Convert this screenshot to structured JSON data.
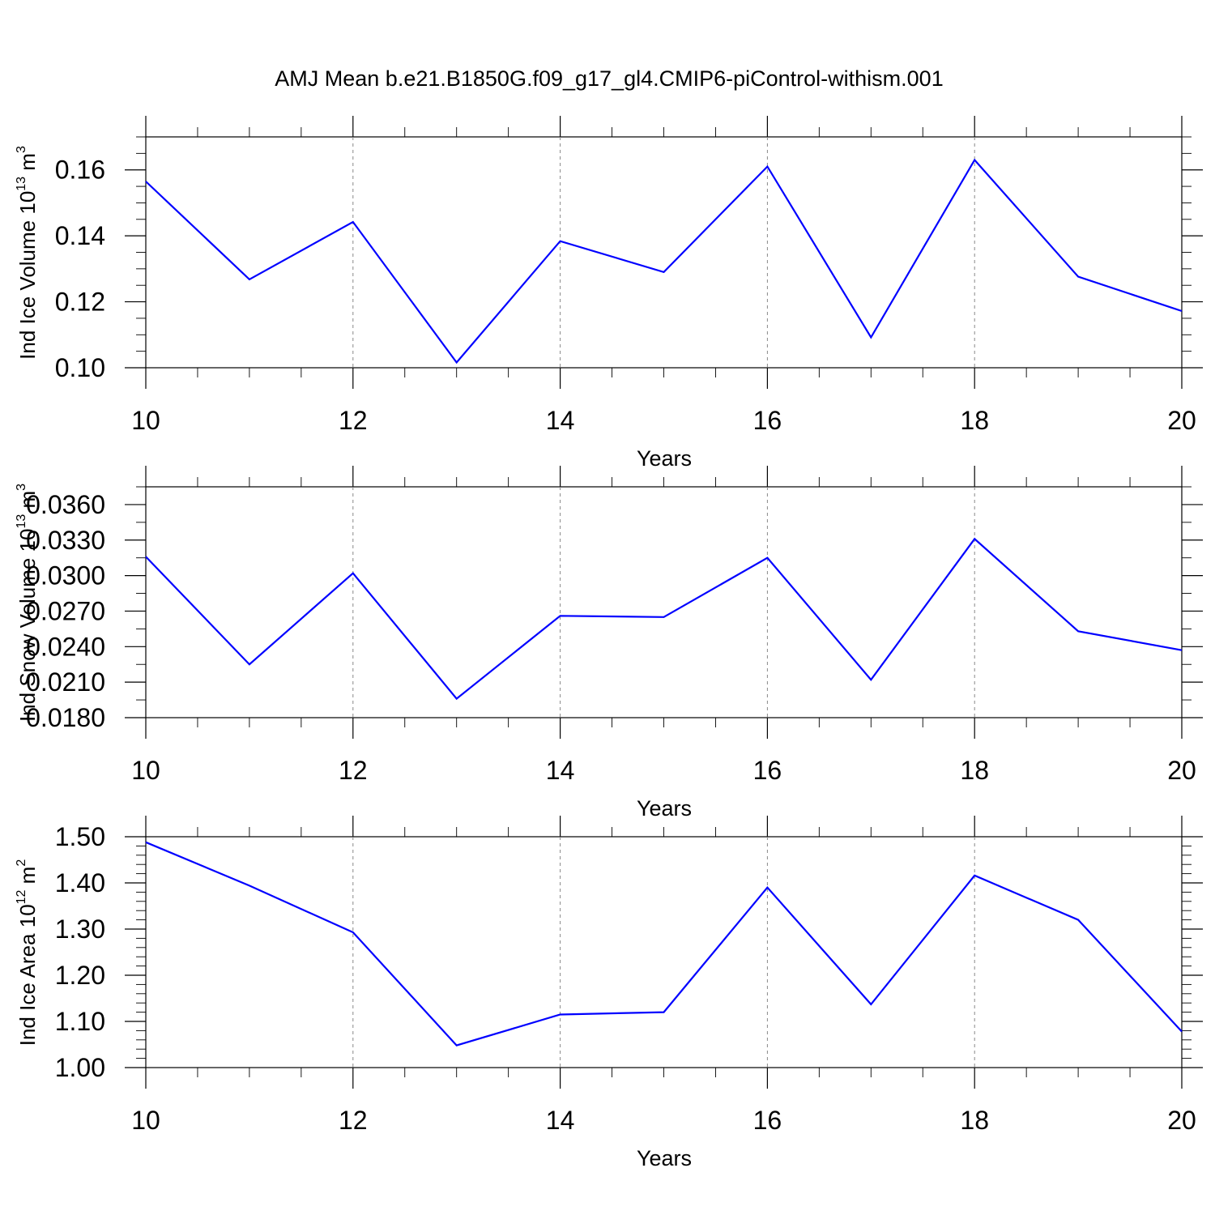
{
  "title": "AMJ Mean b.e21.B1850G.f09_g17_gl4.CMIP6-piControl-withism.001",
  "colors": {
    "line": "#0000ff",
    "axis": "#000000",
    "grid": "#888888"
  },
  "chart_data": [
    {
      "type": "line",
      "x": [
        10,
        11,
        12,
        13,
        14,
        15,
        16,
        17,
        18,
        19,
        20
      ],
      "values": [
        0.1565,
        0.1268,
        0.1442,
        0.1016,
        0.1384,
        0.129,
        0.161,
        0.1092,
        0.163,
        0.1276,
        0.1172
      ],
      "xlabel": "Years",
      "ylabel": {
        "text": "Ind Ice Volume 10",
        "sup": "13",
        "unit": " m",
        "unit_sup": "3"
      },
      "xlim": [
        10,
        20
      ],
      "ylim": [
        0.1,
        0.17
      ],
      "xticks": [
        "10",
        "12",
        "14",
        "16",
        "18",
        "20"
      ],
      "yticks": [
        "0.10",
        "0.12",
        "0.14",
        "0.16"
      ],
      "grid": "vertical dashed at major x ticks"
    },
    {
      "type": "line",
      "x": [
        10,
        11,
        12,
        13,
        14,
        15,
        16,
        17,
        18,
        19,
        20
      ],
      "values": [
        0.0316,
        0.0225,
        0.0302,
        0.0196,
        0.0266,
        0.0265,
        0.0315,
        0.0212,
        0.0331,
        0.0253,
        0.0237
      ],
      "xlabel": "Years",
      "ylabel": {
        "text": "Ind Snow Volume 10",
        "sup": "13",
        "unit": " m",
        "unit_sup": "3"
      },
      "xlim": [
        10,
        20
      ],
      "ylim": [
        0.018,
        0.0375
      ],
      "xticks": [
        "10",
        "12",
        "14",
        "16",
        "18",
        "20"
      ],
      "yticks": [
        "0.0180",
        "0.0210",
        "0.0240",
        "0.0270",
        "0.0300",
        "0.0330",
        "0.0360"
      ],
      "grid": "vertical dashed at major x ticks"
    },
    {
      "type": "line",
      "x": [
        10,
        11,
        12,
        13,
        14,
        15,
        16,
        17,
        18,
        19,
        20
      ],
      "values": [
        1.488,
        1.394,
        1.293,
        1.048,
        1.115,
        1.12,
        1.39,
        1.137,
        1.416,
        1.32,
        1.078
      ],
      "xlabel": "Years",
      "ylabel": {
        "text": "Ind Ice Area 10",
        "sup": "12",
        "unit": " m",
        "unit_sup": "2"
      },
      "xlim": [
        10,
        20
      ],
      "ylim": [
        1.0,
        1.5
      ],
      "xticks": [
        "10",
        "12",
        "14",
        "16",
        "18",
        "20"
      ],
      "yticks": [
        "1.00",
        "1.10",
        "1.20",
        "1.30",
        "1.40",
        "1.50"
      ],
      "grid": "vertical dashed at major x ticks"
    }
  ]
}
